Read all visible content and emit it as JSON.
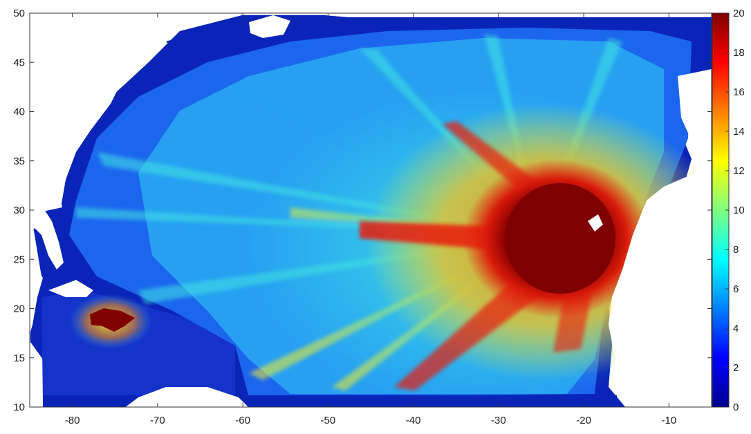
{
  "map": {
    "x_axis": {
      "ticks": [
        "-80",
        "-70",
        "-60",
        "-50",
        "-40",
        "-30",
        "-20",
        "-10"
      ],
      "values": [
        -80,
        -70,
        -60,
        -50,
        -40,
        -30,
        -20,
        -10
      ],
      "range": [
        -85,
        -5
      ]
    },
    "y_axis": {
      "ticks": [
        "10",
        "15",
        "20",
        "25",
        "30",
        "35",
        "40",
        "45",
        "50"
      ],
      "values": [
        10,
        15,
        20,
        25,
        30,
        35,
        40,
        45,
        50
      ],
      "range": [
        10,
        50
      ]
    },
    "colorbar": {
      "ticks": [
        "0",
        "2",
        "4",
        "6",
        "8",
        "10",
        "12",
        "14",
        "16",
        "18",
        "20"
      ],
      "values": [
        0,
        2,
        4,
        6,
        8,
        10,
        12,
        14,
        16,
        18,
        20
      ],
      "range": [
        0,
        20
      ],
      "colormap": "jet"
    },
    "colors": {
      "dark_red": "#7f0000",
      "red": "#e81e0e",
      "orange": "#f08a12",
      "yellow": "#f2ee2a",
      "cyan": "#3fe4e2",
      "light_blue": "#29a6f2",
      "blue": "#1c66ee",
      "dark_blue": "#0a24b8",
      "land": "#ffffff"
    }
  }
}
